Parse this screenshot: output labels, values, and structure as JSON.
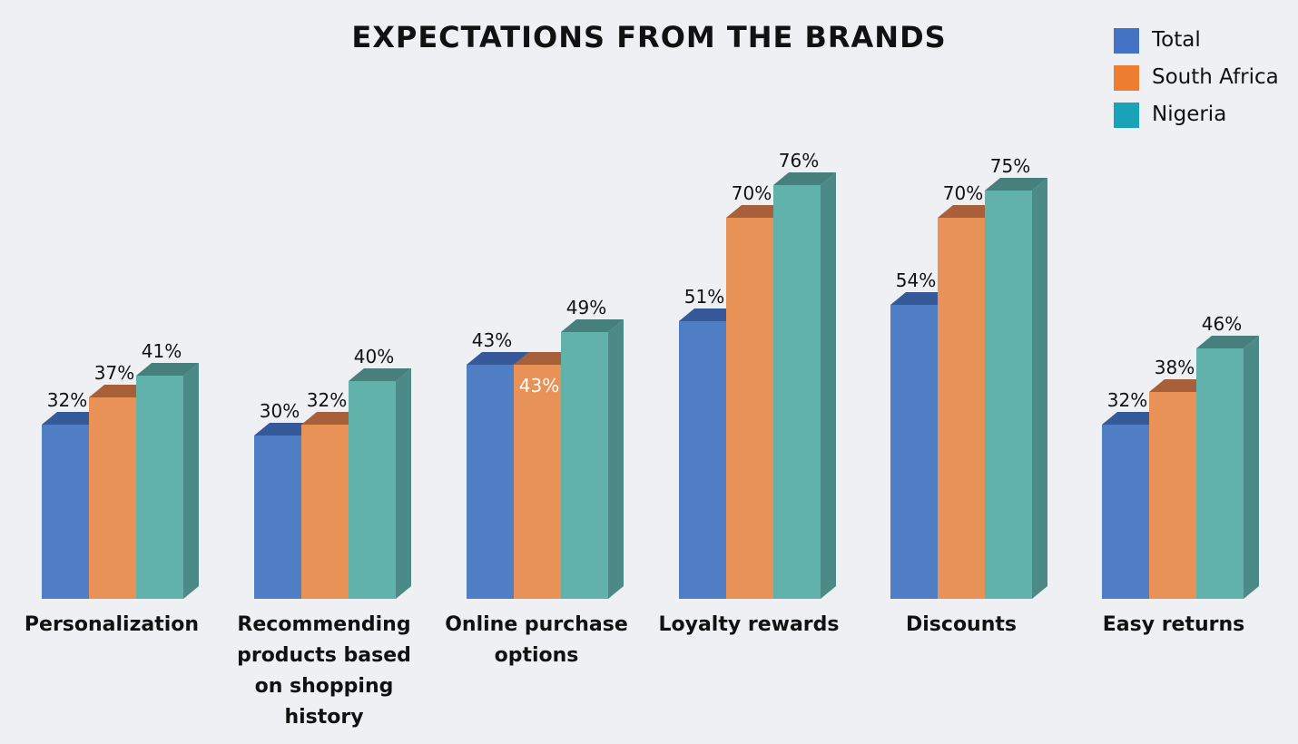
{
  "chart_data": {
    "type": "bar",
    "title": "EXPECTATIONS FROM THE BRANDS",
    "xlabel": "",
    "ylabel": "",
    "ylim": [
      0,
      100
    ],
    "grid": false,
    "legend_position": "top-right",
    "categories": [
      "Personalization",
      "Recommending products based on shopping history",
      "Online purchase options",
      "Loyalty rewards",
      "Discounts",
      "Easy returns"
    ],
    "series": [
      {
        "name": "Total",
        "color": "#4f7ec4",
        "values": [
          32,
          30,
          43,
          51,
          54,
          32
        ]
      },
      {
        "name": "South Africa",
        "color": "#e89257",
        "values": [
          37,
          32,
          43,
          70,
          70,
          38
        ]
      },
      {
        "name": "Nigeria",
        "color": "#62b2ac",
        "values": [
          41,
          40,
          49,
          76,
          75,
          46
        ]
      }
    ],
    "data_labels": [
      [
        "32%",
        "30%",
        "43%",
        "51%",
        "54%",
        "32%"
      ],
      [
        "37%",
        "32%",
        "43%",
        "70%",
        "70%",
        "38%"
      ],
      [
        "41%",
        "40%",
        "49%",
        "76%",
        "75%",
        "46%"
      ]
    ]
  },
  "legend": {
    "items": [
      {
        "label": "Total",
        "color": "#4472c4"
      },
      {
        "label": "South Africa",
        "color": "#ed7d31"
      },
      {
        "label": "Nigeria",
        "color": "#18a3b8"
      }
    ]
  },
  "colors": {
    "background": "#eef0f4",
    "total_front": "#4f7ec4",
    "total_side": "#3d63a2",
    "south_africa_front": "#e89257",
    "south_africa_side": "#b8693c",
    "nigeria_front": "#62b2ac",
    "nigeria_side": "#4b8a86"
  }
}
